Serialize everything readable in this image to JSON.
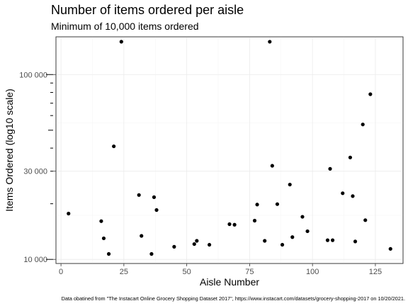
{
  "title": "Number of items ordered per aisle",
  "subtitle": "Minimum of 10,000 items ordered",
  "caption": "Data obatined from \"The Instacart Online Grocery Shopping Dataset 2017\", https://www.instacart.com/datasets/grocery-shopping-2017 on 10/20/2021.",
  "chart_data": {
    "type": "scatter",
    "title": "Number of items ordered per aisle",
    "subtitle": "Minimum of 10,000 items ordered",
    "xlabel": "Aisle Number",
    "ylabel": "Items Ordered (log10 scale)",
    "y_scale": "log10",
    "xlim": [
      -2,
      136
    ],
    "ylim": [
      9500,
      160000
    ],
    "grid": true,
    "x_ticks": [
      0,
      25,
      50,
      75,
      100,
      125
    ],
    "x_tick_labels": [
      "0",
      "25",
      "50",
      "75",
      "100",
      "125"
    ],
    "y_ticks": [
      10000,
      30000,
      100000
    ],
    "y_tick_labels": [
      "10 000",
      "30 000",
      "100 000"
    ],
    "points": [
      {
        "x": 3,
        "y": 17700
      },
      {
        "x": 16,
        "y": 16100
      },
      {
        "x": 17,
        "y": 13000
      },
      {
        "x": 19,
        "y": 10700
      },
      {
        "x": 21,
        "y": 40900
      },
      {
        "x": 24,
        "y": 150600
      },
      {
        "x": 31,
        "y": 22300
      },
      {
        "x": 32,
        "y": 13400
      },
      {
        "x": 36,
        "y": 10700
      },
      {
        "x": 37,
        "y": 21700
      },
      {
        "x": 38,
        "y": 18500
      },
      {
        "x": 45,
        "y": 11700
      },
      {
        "x": 53,
        "y": 12100
      },
      {
        "x": 54,
        "y": 12600
      },
      {
        "x": 59,
        "y": 12000
      },
      {
        "x": 67,
        "y": 15500
      },
      {
        "x": 69,
        "y": 15400
      },
      {
        "x": 77,
        "y": 16200
      },
      {
        "x": 78,
        "y": 19800
      },
      {
        "x": 81,
        "y": 12600
      },
      {
        "x": 83,
        "y": 150500
      },
      {
        "x": 84,
        "y": 32100
      },
      {
        "x": 86,
        "y": 19900
      },
      {
        "x": 88,
        "y": 12000
      },
      {
        "x": 91,
        "y": 25400
      },
      {
        "x": 92,
        "y": 13200
      },
      {
        "x": 96,
        "y": 17000
      },
      {
        "x": 98,
        "y": 14200
      },
      {
        "x": 106,
        "y": 12700
      },
      {
        "x": 107,
        "y": 30900
      },
      {
        "x": 108,
        "y": 12700
      },
      {
        "x": 112,
        "y": 22800
      },
      {
        "x": 115,
        "y": 35600
      },
      {
        "x": 116,
        "y": 22000
      },
      {
        "x": 117,
        "y": 12500
      },
      {
        "x": 120,
        "y": 53700
      },
      {
        "x": 121,
        "y": 16300
      },
      {
        "x": 123,
        "y": 78300
      },
      {
        "x": 131,
        "y": 11400
      }
    ]
  }
}
